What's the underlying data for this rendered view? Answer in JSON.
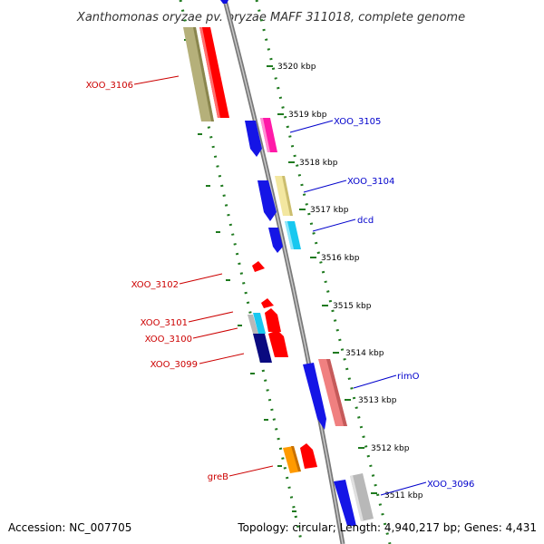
{
  "title": "Xanthomonas oryzae pv. oryzae MAFF 311018, complete genome",
  "footer": {
    "accession": "Accession: NC_007705",
    "topology": "Topology: circular; Length: 4,940,217 bp; Genes: 4,431"
  },
  "colors": {
    "backbone": "#808080",
    "tick": "#1f7a1f",
    "label_forward": "#cc0000",
    "label_reverse": "#0000cc"
  },
  "scale_ticks": [
    {
      "kbp": 3520,
      "label": "3520 kbp"
    },
    {
      "kbp": 3519,
      "label": "3519 kbp"
    },
    {
      "kbp": 3518,
      "label": "3518 kbp"
    },
    {
      "kbp": 3517,
      "label": "3517 kbp"
    },
    {
      "kbp": 3516,
      "label": "3516 kbp"
    },
    {
      "kbp": 3515,
      "label": "3515 kbp"
    },
    {
      "kbp": 3514,
      "label": "3514 kbp"
    },
    {
      "kbp": 3513,
      "label": "3513 kbp"
    },
    {
      "kbp": 3512,
      "label": "3512 kbp"
    },
    {
      "kbp": 3511,
      "label": "3511 kbp"
    }
  ],
  "genes": [
    {
      "name": "XOO_3106",
      "strand": "forward"
    },
    {
      "name": "XOO_3105",
      "strand": "reverse"
    },
    {
      "name": "XOO_3104",
      "strand": "reverse"
    },
    {
      "name": "dcd",
      "strand": "reverse"
    },
    {
      "name": "XOO_3102",
      "strand": "forward"
    },
    {
      "name": "XOO_3101",
      "strand": "forward"
    },
    {
      "name": "XOO_3100",
      "strand": "forward"
    },
    {
      "name": "XOO_3099",
      "strand": "forward"
    },
    {
      "name": "rimO",
      "strand": "reverse"
    },
    {
      "name": "greB",
      "strand": "forward"
    },
    {
      "name": "XOO_3096",
      "strand": "reverse"
    }
  ]
}
